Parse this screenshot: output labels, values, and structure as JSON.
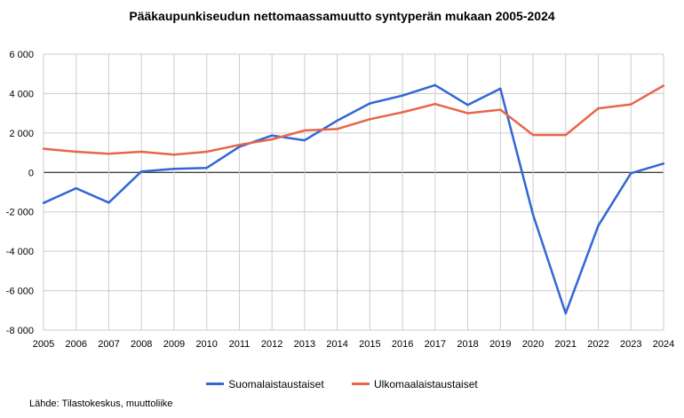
{
  "chart_data": {
    "type": "line",
    "title": "Pääkaupunkiseudun nettomaassamuutto syntyperän mukaan 2005-2024",
    "xlabel": "",
    "ylabel": "",
    "x": [
      "2005",
      "2006",
      "2007",
      "2008",
      "2009",
      "2010",
      "2011",
      "2012",
      "2013",
      "2014",
      "2015",
      "2016",
      "2017",
      "2018",
      "2019",
      "2020",
      "2021",
      "2022",
      "2023",
      "2024"
    ],
    "ylim": [
      -8000,
      6000
    ],
    "y_ticks": [
      6000,
      4000,
      2000,
      0,
      -2000,
      -4000,
      -6000,
      -8000
    ],
    "y_tick_labels": [
      "6 000",
      "4 000",
      "2 000",
      "0",
      "-2 000",
      "-4 000",
      "-6 000",
      "-8 000"
    ],
    "grid": true,
    "legend_position": "bottom",
    "series": [
      {
        "name": "Suomalaistaustaiset",
        "color": "#3366d6",
        "values": [
          -1550,
          -800,
          -1530,
          50,
          180,
          230,
          1300,
          1870,
          1630,
          2630,
          3500,
          3900,
          4430,
          3420,
          4250,
          -2150,
          -7150,
          -2700,
          -40,
          450
        ]
      },
      {
        "name": "Ulkomaalaistaustaiset",
        "color": "#e8664a",
        "values": [
          1200,
          1050,
          950,
          1050,
          900,
          1050,
          1400,
          1680,
          2130,
          2200,
          2700,
          3050,
          3470,
          3000,
          3180,
          1900,
          1900,
          3250,
          3450,
          4400
        ]
      }
    ]
  },
  "footer": {
    "source": "Lähde: Tilastokeskus, muuttoliike"
  }
}
